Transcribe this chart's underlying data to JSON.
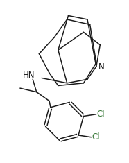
{
  "bg_color": "#ffffff",
  "line_color": "#1a1a1a",
  "text_color": "#1a1a1a",
  "N_color": "#1a1a1a",
  "Cl_color": "#3a7a3a",
  "figsize": [
    1.86,
    2.35
  ],
  "dpi": 100,
  "xlim": [
    0,
    10
  ],
  "ylim": [
    0,
    12.65
  ]
}
